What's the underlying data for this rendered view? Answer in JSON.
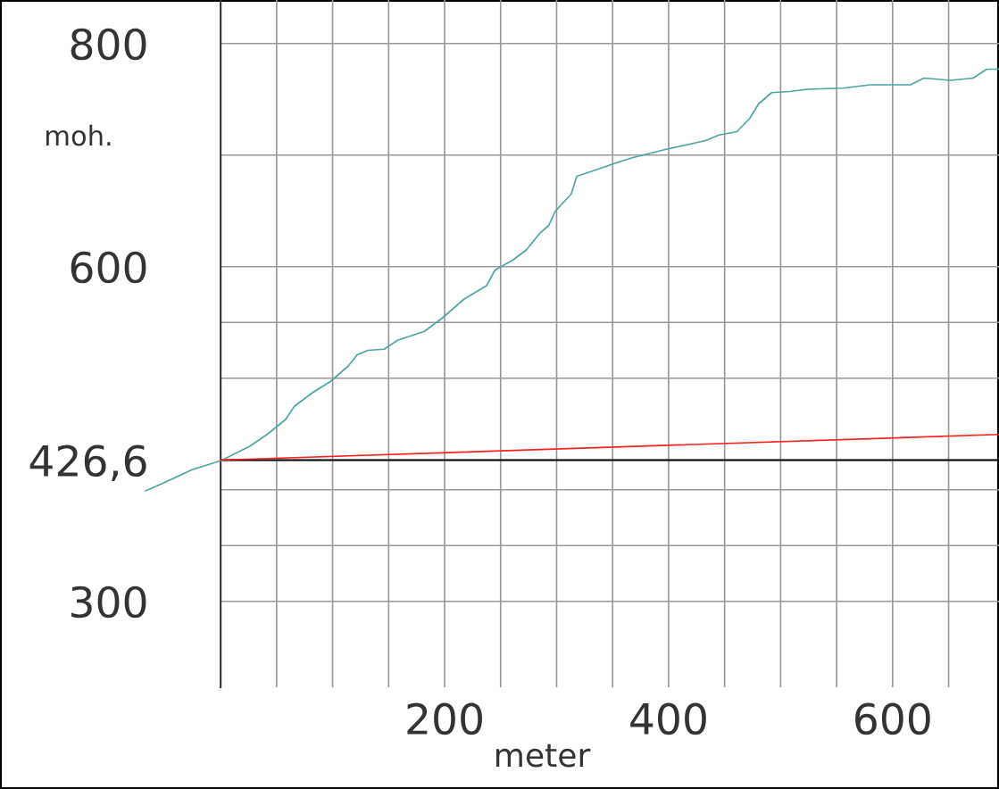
{
  "chart_data": {
    "type": "line",
    "xlabel": "meter",
    "ylabel": "moh.",
    "xlim": [
      -197,
      695
    ],
    "ylim": [
      223,
      839
    ],
    "xticks": [
      {
        "value": 50,
        "label": null
      },
      {
        "value": 100,
        "label": null
      },
      {
        "value": 150,
        "label": null
      },
      200,
      {
        "value": 250,
        "label": null
      },
      {
        "value": 300,
        "label": null
      },
      {
        "value": 350,
        "label": null
      },
      400,
      {
        "value": 450,
        "label": null
      },
      {
        "value": 500,
        "label": null
      },
      {
        "value": 550,
        "label": null
      },
      600,
      {
        "value": 650,
        "label": null
      }
    ],
    "yticks": [
      300,
      {
        "value": 350,
        "label": null
      },
      {
        "value": 400,
        "label": null
      },
      {
        "value": 426.6,
        "label": "426,6"
      },
      {
        "value": 500,
        "label": null
      },
      {
        "value": 550,
        "label": null
      },
      600,
      {
        "value": 700,
        "label": null
      },
      800
    ],
    "grid": true,
    "ref_lines": [
      {
        "axis": "y",
        "value": 426.6,
        "color": "#000000"
      }
    ],
    "series": [
      {
        "color": "#4fa3a3",
        "x": [
          -67,
          -49,
          -25.5,
          0,
          26,
          42,
          58,
          66,
          82,
          98,
          114,
          122,
          131.5,
          146,
          158,
          182,
          198,
          217.5,
          237.5,
          245,
          261,
          273,
          285,
          293,
          299,
          313,
          318,
          333,
          353,
          369,
          397,
          433,
          445,
          461,
          472.5,
          480.5,
          492,
          508,
          524,
          556,
          580,
          616,
          628,
          652,
          672,
          684,
          695
        ],
        "values": [
          399,
          407,
          418,
          426,
          439,
          450,
          463,
          475,
          487,
          497,
          511,
          521,
          525,
          526,
          534,
          542,
          554,
          571,
          583,
          597,
          606,
          615,
          630,
          637,
          650,
          665,
          681,
          686,
          693,
          698,
          705,
          713,
          718,
          721,
          733,
          746,
          756,
          757,
          759,
          760,
          763,
          763,
          769,
          767,
          769,
          777,
          777
        ]
      },
      {
        "color": "#ff2020",
        "x": [
          0,
          695
        ],
        "values": [
          426.6,
          449.6
        ]
      }
    ]
  }
}
